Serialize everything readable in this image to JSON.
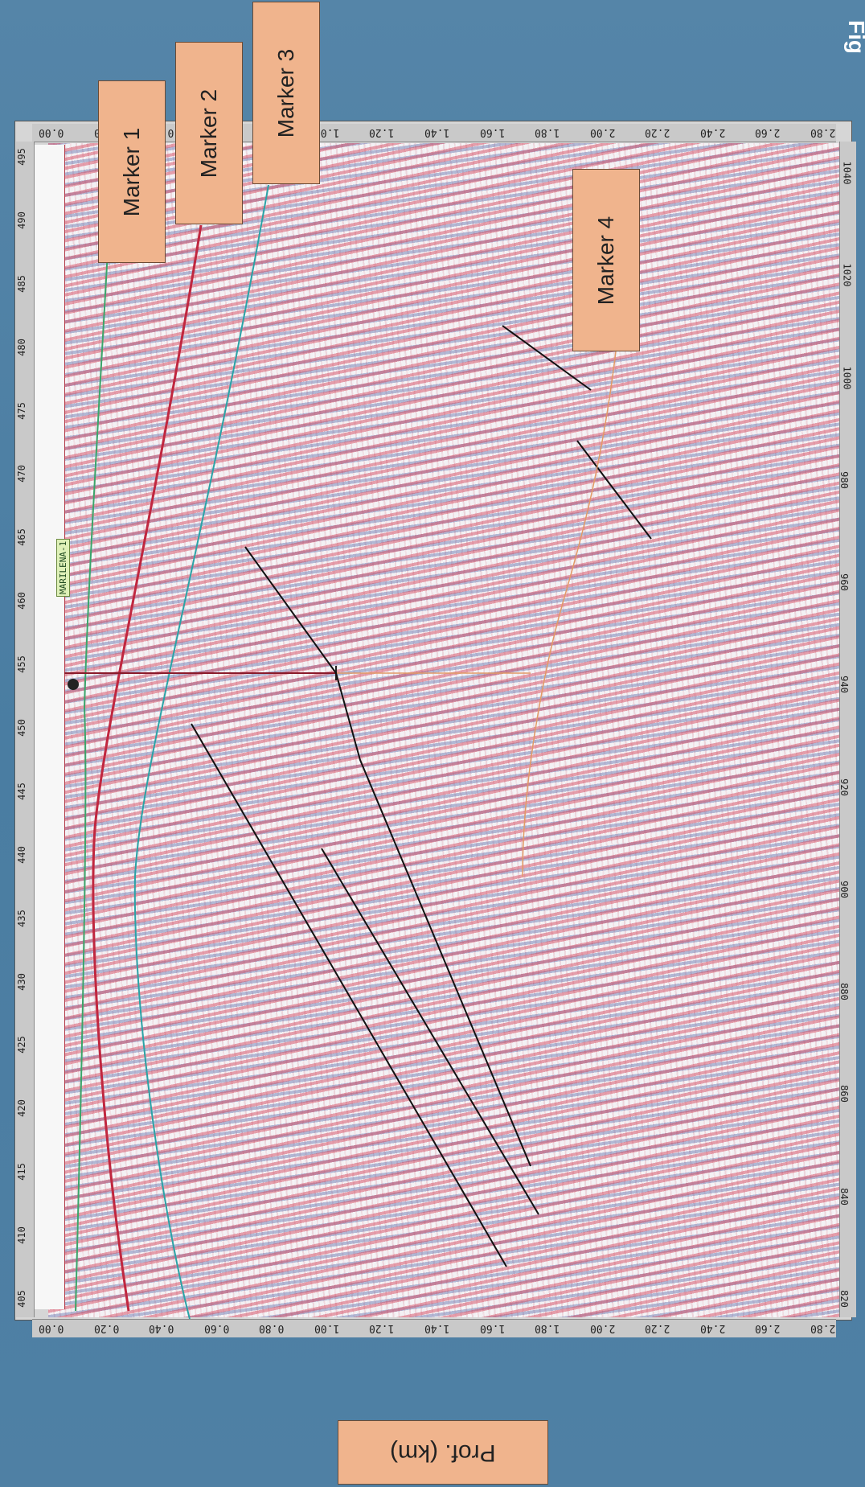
{
  "markers": [
    {
      "label": "Marker 1"
    },
    {
      "label": "Marker 2"
    },
    {
      "label": "Marker 3"
    },
    {
      "label": "Marker 4"
    }
  ],
  "axis_label": "Prof. (km)",
  "corner_text": "Fig",
  "well": {
    "name": "MARILENA-1"
  },
  "depth_ticks": [
    "0.00",
    "0.20",
    "0.40",
    "0.60",
    "0.80",
    "1.00",
    "1.20",
    "1.40",
    "1.60",
    "1.80",
    "2.00",
    "2.20",
    "2.40",
    "2.60",
    "2.80"
  ],
  "trace_ticks": [
    "405",
    "410",
    "415",
    "420",
    "425",
    "430",
    "435",
    "440",
    "445",
    "450",
    "455",
    "460",
    "465",
    "470",
    "475",
    "480",
    "485",
    "490",
    "495"
  ],
  "distance_ticks": [
    "820",
    "840",
    "860",
    "880",
    "900",
    "920",
    "940",
    "960",
    "980",
    "1000",
    "1020",
    "1040"
  ],
  "colors": {
    "background": "#4d7fa3",
    "marker_fill": "#f0b48d",
    "horizon_red": "#c0273f",
    "horizon_cyan": "#2aa3a6",
    "horizon_green": "#3aa56a",
    "horizon_orange": "#e29a66",
    "fault": "#111111"
  }
}
